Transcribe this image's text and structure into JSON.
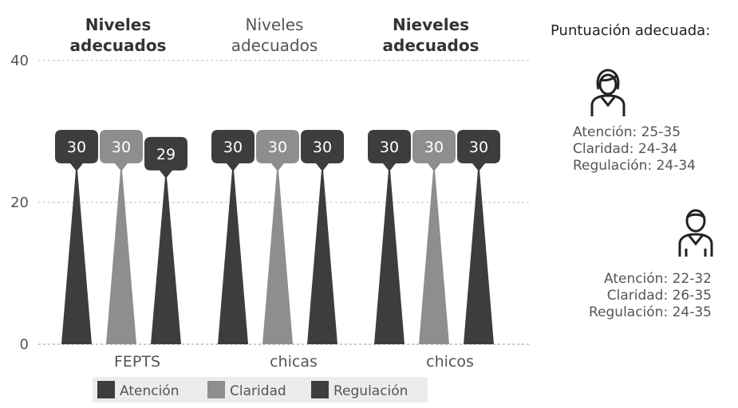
{
  "chart_data": {
    "type": "bar",
    "bar_shape": "spike",
    "categories": [
      "FEPTS",
      "chicas",
      "chicos"
    ],
    "group_titles": [
      "Niveles\nadecuados",
      "Niveles\nadecuados",
      "Nieveles\nadecuados"
    ],
    "series": [
      {
        "name": "Atención",
        "values": [
          30,
          30,
          30
        ],
        "color": "#3d3d3d"
      },
      {
        "name": "Claridad",
        "values": [
          30,
          30,
          30
        ],
        "color": "#8e8e8e"
      },
      {
        "name": "Regulación",
        "values": [
          29,
          30,
          30
        ],
        "color": "#3d3d3d"
      }
    ],
    "y_ticks": [
      0,
      20,
      40
    ],
    "ylim": [
      0,
      40
    ],
    "grid": true,
    "legend_position": "bottom-left",
    "data_labels": true
  },
  "sidebar": {
    "title": "Puntuación adecuada:",
    "girls": {
      "icon": "female-person-icon",
      "lines": [
        "Atención: 25-35",
        "Claridad: 24-34",
        "Regulación: 24-34"
      ]
    },
    "boys": {
      "icon": "male-person-icon",
      "lines": [
        "Atención: 22-32",
        "Claridad: 26-35",
        "Regulación: 24-35"
      ]
    }
  }
}
